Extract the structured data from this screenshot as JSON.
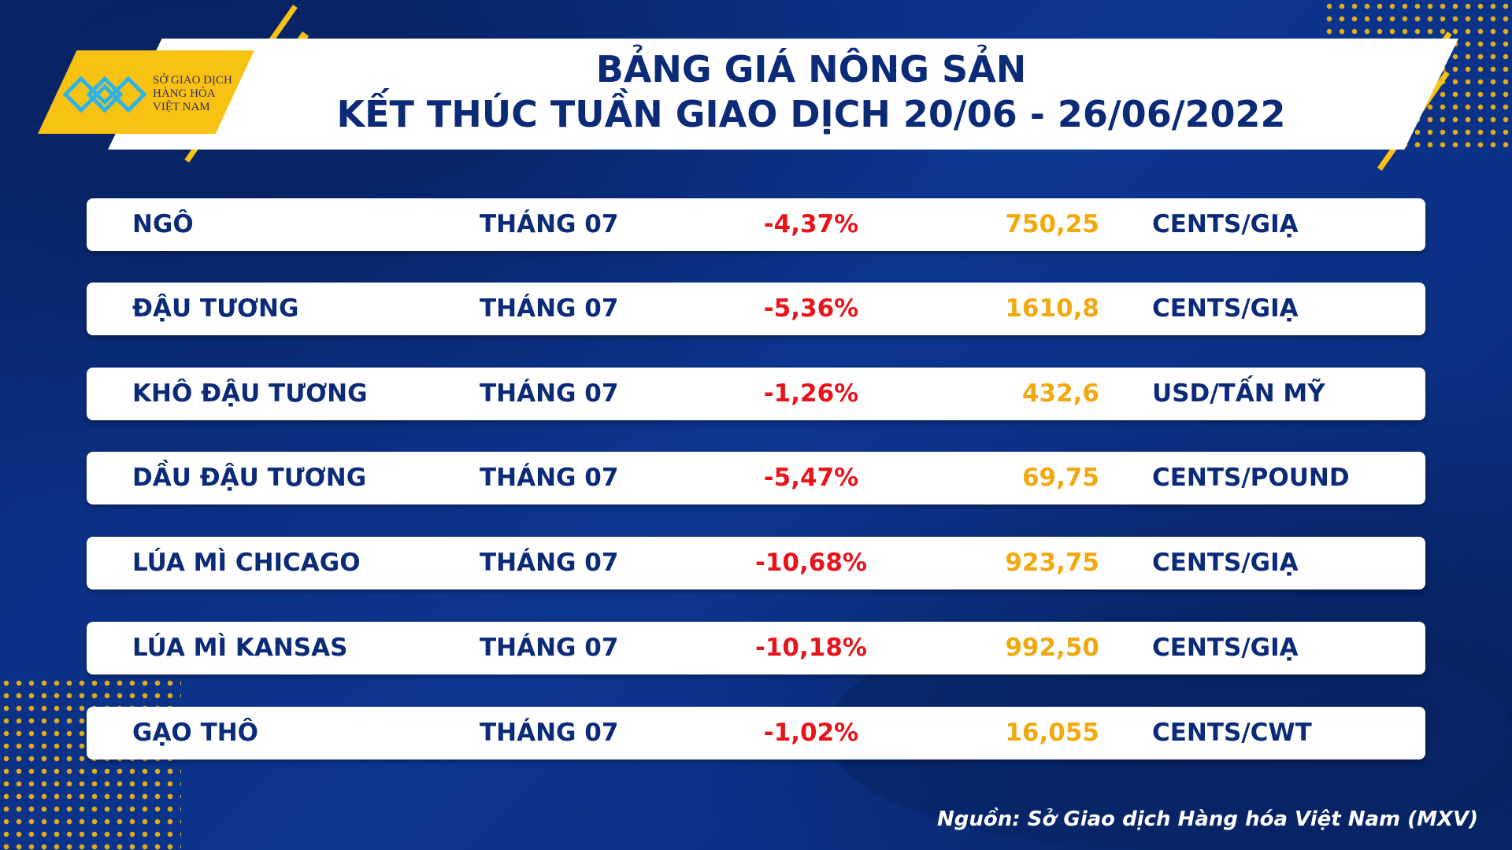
{
  "logo": {
    "text_lines": [
      "SỞ GIAO DỊCH",
      "HÀNG HÓA",
      "VIỆT NAM"
    ]
  },
  "title": {
    "line1": "BẢNG GIÁ NÔNG SẢN",
    "line2": "KẾT THÚC TUẦN GIAO DỊCH 20/06 - 26/06/2022"
  },
  "rows": [
    {
      "name": "NGÔ",
      "month": "THÁNG 07",
      "change": "-4,37%",
      "price": "750,25",
      "unit": "CENTS/GIẠ"
    },
    {
      "name": "ĐẬU TƯƠNG",
      "month": "THÁNG 07",
      "change": "-5,36%",
      "price": "1610,8",
      "unit": "CENTS/GIẠ"
    },
    {
      "name": "KHÔ ĐẬU TƯƠNG",
      "month": "THÁNG 07",
      "change": "-1,26%",
      "price": "432,6",
      "unit": "USD/TẤN MỸ"
    },
    {
      "name": "DẦU ĐẬU TƯƠNG",
      "month": "THÁNG 07",
      "change": "-5,47%",
      "price": "69,75",
      "unit": "CENTS/POUND"
    },
    {
      "name": "LÚA MÌ CHICAGO",
      "month": "THÁNG 07",
      "change": "-10,68%",
      "price": "923,75",
      "unit": "CENTS/GIẠ"
    },
    {
      "name": "LÚA MÌ KANSAS",
      "month": "THÁNG 07",
      "change": "-10,18%",
      "price": "992,50",
      "unit": "CENTS/GIẠ"
    },
    {
      "name": "GẠO THÔ",
      "month": "THÁNG 07",
      "change": "-1,02%",
      "price": "16,055",
      "unit": "CENTS/CWT"
    }
  ],
  "source": "Nguồn: Sở Giao dịch Hàng hóa Việt Nam (MXV)",
  "colors": {
    "background": "#0b2a78",
    "accent": "#f8c213",
    "negative": "#e8141c",
    "price": "#f0a90e"
  }
}
